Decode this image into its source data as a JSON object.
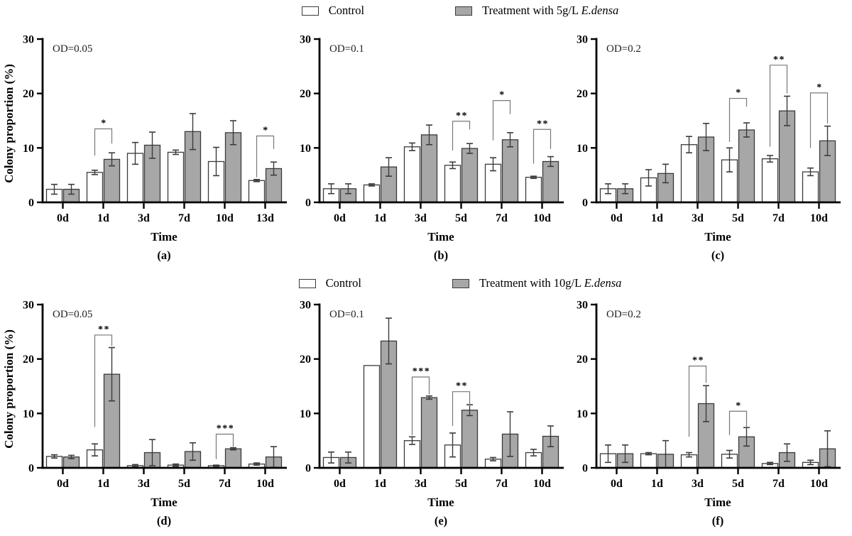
{
  "figure": {
    "ylabel": "Colony proportion (%)",
    "xlabel": "Time",
    "ylim": [
      0,
      30
    ],
    "yticks": [
      0,
      10,
      20,
      30
    ],
    "colors": {
      "control_fill": "#ffffff",
      "treatment_fill": "#a7a7a7",
      "bar_stroke": "#3b3b3b",
      "axis": "#000000",
      "error_bar": "#3b3b3b",
      "bracket_line": "#787878",
      "asterisk": "#15151f"
    }
  },
  "legends": [
    {
      "position": "top",
      "items": [
        {
          "swatch": "control",
          "label": "Control"
        },
        {
          "swatch": "treatment",
          "label": "Treatment with 5g/L ",
          "label_italic": "E.densa"
        }
      ]
    },
    {
      "position": "bottom",
      "items": [
        {
          "swatch": "control",
          "label": "Control"
        },
        {
          "swatch": "treatment",
          "label": "Treatment with 10g/L ",
          "label_italic": "E.densa"
        }
      ]
    }
  ],
  "chart_data": [
    {
      "type": "bar",
      "panel_label": "(a)",
      "od_label": "OD=0.05",
      "xlabel": "Time",
      "ylim": [
        0,
        30
      ],
      "categories": [
        "0d",
        "1d",
        "3d",
        "7d",
        "10d",
        "13d"
      ],
      "series": [
        {
          "name": "Control",
          "values": [
            2.4,
            5.5,
            9.0,
            9.2,
            7.5,
            4.0
          ],
          "errors": [
            0.9,
            0.4,
            2.0,
            0.4,
            2.6,
            0.2
          ]
        },
        {
          "name": "Treatment",
          "values": [
            2.4,
            7.9,
            10.5,
            13.0,
            12.8,
            6.2
          ],
          "errors": [
            0.9,
            1.2,
            2.4,
            3.3,
            2.2,
            1.2
          ]
        }
      ],
      "significance": [
        {
          "category": "1d",
          "label": "*",
          "top": 13.5,
          "left_drop": 8.6,
          "right_drop": 10.8
        },
        {
          "category": "13d",
          "label": "*",
          "top": 12.2,
          "left_drop": 4.6,
          "right_drop": 9.8
        }
      ]
    },
    {
      "type": "bar",
      "panel_label": "(b)",
      "od_label": "OD=0.1",
      "xlabel": "Time",
      "ylim": [
        0,
        30
      ],
      "categories": [
        "0d",
        "1d",
        "3d",
        "5d",
        "7d",
        "10d"
      ],
      "series": [
        {
          "name": "Control",
          "values": [
            2.5,
            3.2,
            10.2,
            6.8,
            7.0,
            4.6
          ],
          "errors": [
            0.9,
            0.2,
            0.7,
            0.6,
            1.2,
            0.2
          ]
        },
        {
          "name": "Treatment",
          "values": [
            2.5,
            6.5,
            12.4,
            9.9,
            11.5,
            7.5
          ],
          "errors": [
            0.9,
            1.7,
            1.8,
            0.9,
            1.3,
            0.9
          ]
        }
      ],
      "significance": [
        {
          "category": "5d",
          "label": "**",
          "top": 14.9,
          "left_drop": 9.5,
          "right_drop": 13.4
        },
        {
          "category": "7d",
          "label": "*",
          "top": 18.7,
          "left_drop": 11.4,
          "right_drop": 16.2
        },
        {
          "category": "10d",
          "label": "**",
          "top": 13.4,
          "left_drop": 7.1,
          "right_drop": 9.8
        }
      ]
    },
    {
      "type": "bar",
      "panel_label": "(c)",
      "od_label": "OD=0.2",
      "xlabel": "Time",
      "ylim": [
        0,
        30
      ],
      "categories": [
        "0d",
        "1d",
        "3d",
        "5d",
        "7d",
        "10d"
      ],
      "series": [
        {
          "name": "Control",
          "values": [
            2.5,
            4.5,
            10.6,
            7.8,
            8.0,
            5.6
          ],
          "errors": [
            0.9,
            1.5,
            1.5,
            2.2,
            0.6,
            0.7
          ]
        },
        {
          "name": "Treatment",
          "values": [
            2.5,
            5.3,
            12.0,
            13.3,
            16.8,
            11.3
          ],
          "errors": [
            0.9,
            1.7,
            2.5,
            1.3,
            2.7,
            2.7
          ]
        }
      ],
      "significance": [
        {
          "category": "5d",
          "label": "*",
          "top": 19.1,
          "left_drop": 11.1,
          "right_drop": 17.6
        },
        {
          "category": "7d",
          "label": "**",
          "top": 25.2,
          "left_drop": 10.2,
          "right_drop": 20.0
        },
        {
          "category": "10d",
          "label": "*",
          "top": 20.1,
          "left_drop": 10.0,
          "right_drop": 14.5
        }
      ]
    },
    {
      "type": "bar",
      "panel_label": "(d)",
      "od_label": "OD=0.05",
      "xlabel": "Time",
      "ylim": [
        0,
        30
      ],
      "categories": [
        "0d",
        "1d",
        "3d",
        "5d",
        "7d",
        "10d"
      ],
      "series": [
        {
          "name": "Control",
          "values": [
            2.1,
            3.3,
            0.4,
            0.5,
            0.4,
            0.7
          ],
          "errors": [
            0.3,
            1.1,
            0.2,
            0.2,
            0.1,
            0.2
          ]
        },
        {
          "name": "Treatment",
          "values": [
            2.0,
            17.2,
            2.8,
            3.0,
            3.5,
            2.0
          ],
          "errors": [
            0.3,
            4.9,
            2.4,
            1.6,
            0.2,
            1.9
          ]
        }
      ],
      "significance": [
        {
          "category": "1d",
          "label": "**",
          "top": 24.4,
          "left_drop": 7.5,
          "right_drop": 22.4
        },
        {
          "category": "7d",
          "label": "***",
          "top": 6.2,
          "left_drop": 1.6,
          "right_drop": 3.9
        }
      ]
    },
    {
      "type": "bar",
      "panel_label": "(e)",
      "od_label": "OD=0.1",
      "xlabel": "Time",
      "ylim": [
        0,
        30
      ],
      "categories": [
        "0d",
        "1d",
        "3d",
        "5d",
        "7d",
        "10d"
      ],
      "series": [
        {
          "name": "Control",
          "values": [
            1.9,
            18.8,
            5.0,
            4.2,
            1.6,
            2.8
          ],
          "errors": [
            1.0,
            0,
            0.7,
            2.2,
            0.3,
            0.6
          ]
        },
        {
          "name": "Treatment",
          "values": [
            1.9,
            23.3,
            12.9,
            10.6,
            6.2,
            5.8
          ],
          "errors": [
            1.0,
            4.2,
            0.3,
            1.0,
            4.1,
            1.9
          ]
        }
      ],
      "significance": [
        {
          "category": "3d",
          "label": "***",
          "top": 16.7,
          "left_drop": 6.0,
          "right_drop": 13.5
        },
        {
          "category": "5d",
          "label": "**",
          "top": 14.0,
          "left_drop": 7.7,
          "right_drop": 11.3
        }
      ]
    },
    {
      "type": "bar",
      "panel_label": "(f)",
      "od_label": "OD=0.2",
      "xlabel": "Time",
      "ylim": [
        0,
        30
      ],
      "categories": [
        "0d",
        "1d",
        "3d",
        "5d",
        "7d",
        "10d"
      ],
      "series": [
        {
          "name": "Control",
          "values": [
            2.6,
            2.6,
            2.4,
            2.5,
            0.8,
            1.0
          ],
          "errors": [
            1.6,
            0.2,
            0.4,
            0.7,
            0.2,
            0.4
          ]
        },
        {
          "name": "Treatment",
          "values": [
            2.6,
            2.5,
            11.8,
            5.7,
            2.8,
            3.5
          ],
          "errors": [
            1.6,
            2.5,
            3.3,
            1.7,
            1.6,
            3.3
          ]
        }
      ],
      "significance": [
        {
          "category": "3d",
          "label": "**",
          "top": 18.7,
          "left_drop": 5.7,
          "right_drop": 15.6
        },
        {
          "category": "5d",
          "label": "*",
          "top": 10.4,
          "left_drop": 6.0,
          "right_drop": 7.4
        }
      ]
    }
  ]
}
